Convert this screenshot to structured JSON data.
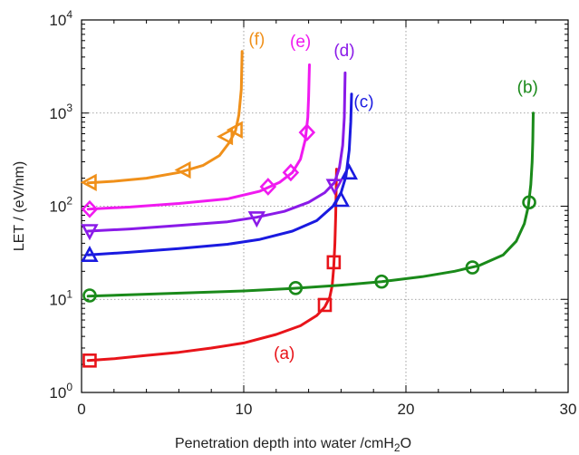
{
  "chart_data": {
    "type": "line",
    "title": "",
    "xlabel": "Penetration depth into water /cmH₂O",
    "ylabel": "LET / (eV/nm)",
    "xlim": [
      0,
      30
    ],
    "ylim": [
      1,
      10000
    ],
    "yscale": "log",
    "grid": true,
    "x_ticks": [
      0,
      10,
      20,
      30
    ],
    "y_ticks": [
      {
        "value": 1,
        "base": "10",
        "exp": "0"
      },
      {
        "value": 10,
        "base": "10",
        "exp": "1"
      },
      {
        "value": 100,
        "base": "10",
        "exp": "2"
      },
      {
        "value": 1000,
        "base": "10",
        "exp": "3"
      },
      {
        "value": 10000,
        "base": "10",
        "exp": "4"
      }
    ],
    "series": [
      {
        "name": "(a)",
        "color": "#e8141a",
        "marker": "square",
        "curve": [
          [
            0.4,
            2.2
          ],
          [
            2,
            2.3
          ],
          [
            4,
            2.5
          ],
          [
            6,
            2.7
          ],
          [
            8,
            3.0
          ],
          [
            10,
            3.4
          ],
          [
            12,
            4.2
          ],
          [
            13.5,
            5.2
          ],
          [
            14.5,
            6.7
          ],
          [
            15.0,
            8.3
          ],
          [
            15.3,
            10.5
          ],
          [
            15.45,
            14
          ],
          [
            15.55,
            22
          ],
          [
            15.62,
            40
          ],
          [
            15.67,
            80
          ],
          [
            15.7,
            150
          ],
          [
            15.72,
            250
          ]
        ],
        "markers": [
          [
            0.5,
            2.2
          ],
          [
            15.0,
            8.7
          ],
          [
            15.55,
            25
          ]
        ],
        "label_pos": [
          12.5,
          2.3
        ]
      },
      {
        "name": "(b)",
        "color": "#1a8a1a",
        "marker": "circle",
        "curve": [
          [
            0.4,
            10.8
          ],
          [
            5,
            11.5
          ],
          [
            10,
            12.3
          ],
          [
            13,
            13.1
          ],
          [
            16,
            14.2
          ],
          [
            18.5,
            15.5
          ],
          [
            21,
            17.5
          ],
          [
            23,
            20
          ],
          [
            24.5,
            23
          ],
          [
            26,
            30
          ],
          [
            26.8,
            42
          ],
          [
            27.3,
            65
          ],
          [
            27.55,
            100
          ],
          [
            27.7,
            170
          ],
          [
            27.78,
            300
          ],
          [
            27.82,
            500
          ],
          [
            27.85,
            1000
          ]
        ],
        "markers": [
          [
            0.5,
            11
          ],
          [
            13.2,
            13.2
          ],
          [
            18.5,
            15.5
          ],
          [
            24.1,
            22
          ],
          [
            27.6,
            110
          ]
        ],
        "label_pos": [
          27.5,
          1650
        ]
      },
      {
        "name": "(c)",
        "color": "#1a1ae0",
        "marker": "triangle-up",
        "curve": [
          [
            0.4,
            30
          ],
          [
            3,
            32
          ],
          [
            6,
            35
          ],
          [
            9,
            39
          ],
          [
            11,
            44
          ],
          [
            13,
            54
          ],
          [
            14.5,
            70
          ],
          [
            15.5,
            100
          ],
          [
            16,
            140
          ],
          [
            16.3,
            210
          ],
          [
            16.5,
            400
          ],
          [
            16.6,
            800
          ],
          [
            16.65,
            1600
          ]
        ],
        "markers": [
          [
            0.5,
            30
          ],
          [
            16.0,
            117
          ],
          [
            16.5,
            230
          ]
        ],
        "label_pos": [
          17.4,
          1150
        ]
      },
      {
        "name": "(d)",
        "color": "#8a1ae8",
        "marker": "triangle-down",
        "curve": [
          [
            0.4,
            54
          ],
          [
            3,
            57
          ],
          [
            6,
            62
          ],
          [
            9,
            68
          ],
          [
            10.8,
            76
          ],
          [
            12.5,
            88
          ],
          [
            14,
            110
          ],
          [
            15,
            140
          ],
          [
            15.6,
            180
          ],
          [
            15.9,
            260
          ],
          [
            16.1,
            450
          ],
          [
            16.2,
            900
          ],
          [
            16.25,
            2700
          ]
        ],
        "markers": [
          [
            0.5,
            54
          ],
          [
            10.8,
            74
          ],
          [
            15.6,
            165
          ]
        ],
        "label_pos": [
          16.2,
          4100
        ]
      },
      {
        "name": "(e)",
        "color": "#f01af0",
        "marker": "diamond",
        "curve": [
          [
            0.4,
            93
          ],
          [
            3,
            98
          ],
          [
            6,
            107
          ],
          [
            9,
            120
          ],
          [
            11,
            145
          ],
          [
            12.2,
            180
          ],
          [
            13,
            230
          ],
          [
            13.5,
            320
          ],
          [
            13.8,
            520
          ],
          [
            13.95,
            900
          ],
          [
            14.0,
            1500
          ],
          [
            14.05,
            3300
          ]
        ],
        "markers": [
          [
            0.5,
            93
          ],
          [
            11.5,
            162
          ],
          [
            12.9,
            230
          ],
          [
            13.9,
            620
          ]
        ],
        "label_pos": [
          13.5,
          5100
        ]
      },
      {
        "name": "(f)",
        "color": "#f0901a",
        "marker": "triangle-left",
        "curve": [
          [
            0.4,
            178
          ],
          [
            2,
            185
          ],
          [
            4,
            200
          ],
          [
            6,
            230
          ],
          [
            7.5,
            275
          ],
          [
            8.5,
            350
          ],
          [
            9.1,
            480
          ],
          [
            9.5,
            650
          ],
          [
            9.7,
            950
          ],
          [
            9.85,
            1800
          ],
          [
            9.9,
            4600
          ]
        ],
        "markers": [
          [
            0.5,
            180
          ],
          [
            6.3,
            245
          ],
          [
            8.9,
            560
          ],
          [
            9.5,
            660
          ]
        ],
        "label_pos": [
          10.8,
          5400
        ]
      }
    ]
  }
}
